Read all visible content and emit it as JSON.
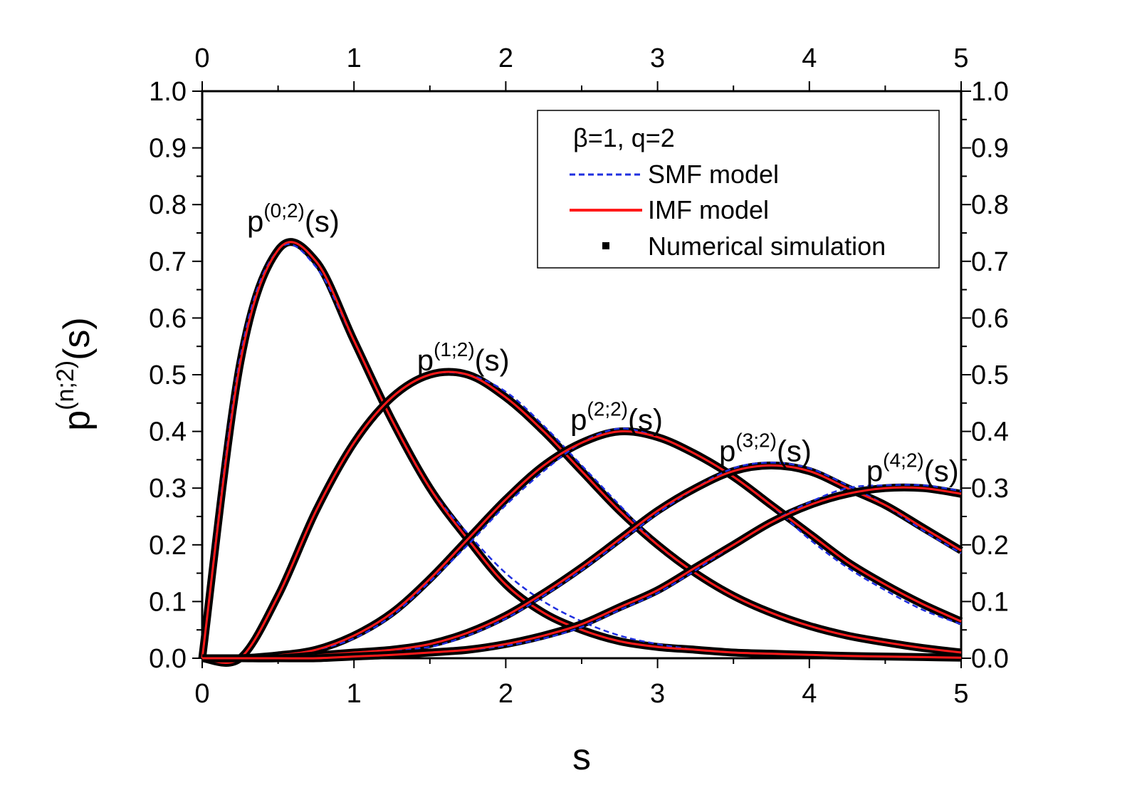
{
  "chart_data": {
    "type": "line",
    "title": "",
    "xlabel": "s",
    "ylabel": {
      "base": "p",
      "sup": "(n;2)",
      "tail": "(s)"
    },
    "xlim": [
      0,
      5
    ],
    "ylim": [
      0,
      1.0
    ],
    "x_ticks": [
      "0",
      "1",
      "2",
      "3",
      "4",
      "5"
    ],
    "y_ticks": [
      "0.0",
      "0.1",
      "0.2",
      "0.3",
      "0.4",
      "0.5",
      "0.6",
      "0.7",
      "0.8",
      "0.9",
      "1.0"
    ],
    "legend": {
      "placement": "top-right",
      "header": "β=1, q=2",
      "entries": [
        {
          "label": "SMF model",
          "style": "dashed",
          "color": "#1f2fe0"
        },
        {
          "label": "IMF model",
          "style": "solid",
          "color": "#ff1a1a"
        },
        {
          "label": "Numerical simulation",
          "style": "marker",
          "color": "#000000"
        }
      ]
    },
    "curve_labels": [
      {
        "base": "p",
        "sup": "(0;2)",
        "tail": "(s)",
        "at": [
          0.6,
          0.77
        ]
      },
      {
        "base": "p",
        "sup": "(1;2)",
        "tail": "(s)",
        "at": [
          1.72,
          0.525
        ]
      },
      {
        "base": "p",
        "sup": "(2;2)",
        "tail": "(s)",
        "at": [
          2.73,
          0.42
        ]
      },
      {
        "base": "p",
        "sup": "(3;2)",
        "tail": "(s)",
        "at": [
          3.71,
          0.365
        ]
      },
      {
        "base": "p",
        "sup": "(4;2)",
        "tail": "(s)",
        "at": [
          4.68,
          0.33
        ]
      }
    ],
    "x": [
      0,
      0.25,
      0.5,
      0.75,
      1.0,
      1.25,
      1.5,
      1.75,
      2.0,
      2.25,
      2.5,
      2.75,
      3.0,
      3.25,
      3.5,
      3.75,
      4.0,
      4.25,
      4.5,
      4.75,
      5.0
    ],
    "series": [
      {
        "name": "n=0",
        "imf": [
          0,
          0.52,
          0.72,
          0.7,
          0.56,
          0.42,
          0.3,
          0.21,
          0.13,
          0.08,
          0.05,
          0.03,
          0.02,
          0.015,
          0.01,
          0.008,
          0.006,
          0.004,
          0.003,
          0.002,
          0.001
        ],
        "smf": [
          0,
          0.53,
          0.72,
          0.69,
          0.56,
          0.42,
          0.3,
          0.22,
          0.15,
          0.1,
          0.065,
          0.04,
          0.025,
          0.015,
          0.01,
          0.008,
          0.006,
          0.004,
          0.003,
          0.002,
          0.001
        ]
      },
      {
        "name": "n=1",
        "imf": [
          0,
          0.0,
          0.11,
          0.26,
          0.38,
          0.46,
          0.5,
          0.5,
          0.46,
          0.4,
          0.33,
          0.26,
          0.2,
          0.15,
          0.11,
          0.08,
          0.057,
          0.04,
          0.028,
          0.018,
          0.01
        ],
        "smf": [
          0,
          0.0,
          0.11,
          0.26,
          0.38,
          0.46,
          0.5,
          0.5,
          0.47,
          0.41,
          0.34,
          0.27,
          0.2,
          0.15,
          0.11,
          0.08,
          0.057,
          0.04,
          0.028,
          0.018,
          0.01
        ]
      },
      {
        "name": "n=2",
        "imf": [
          0,
          0.0,
          0.005,
          0.015,
          0.04,
          0.08,
          0.14,
          0.21,
          0.28,
          0.34,
          0.38,
          0.4,
          0.39,
          0.36,
          0.32,
          0.27,
          0.22,
          0.17,
          0.13,
          0.095,
          0.065
        ],
        "smf": [
          0,
          0.0,
          0.005,
          0.015,
          0.035,
          0.075,
          0.135,
          0.2,
          0.27,
          0.33,
          0.38,
          0.405,
          0.39,
          0.36,
          0.32,
          0.27,
          0.21,
          0.16,
          0.12,
          0.085,
          0.06
        ]
      },
      {
        "name": "n=3",
        "imf": [
          0,
          0.0,
          0.0,
          0.005,
          0.01,
          0.015,
          0.025,
          0.045,
          0.075,
          0.115,
          0.16,
          0.21,
          0.26,
          0.3,
          0.33,
          0.34,
          0.33,
          0.3,
          0.27,
          0.23,
          0.19
        ],
        "smf": [
          0,
          0.0,
          0.0,
          0.005,
          0.01,
          0.015,
          0.02,
          0.04,
          0.07,
          0.11,
          0.155,
          0.205,
          0.255,
          0.3,
          0.335,
          0.345,
          0.335,
          0.305,
          0.27,
          0.225,
          0.185
        ]
      },
      {
        "name": "n=4",
        "imf": [
          0,
          0.0,
          0.0,
          0.0,
          0.003,
          0.006,
          0.01,
          0.015,
          0.025,
          0.04,
          0.06,
          0.09,
          0.12,
          0.16,
          0.2,
          0.24,
          0.27,
          0.29,
          0.3,
          0.3,
          0.29
        ],
        "smf": [
          0,
          0.0,
          0.0,
          0.0,
          0.003,
          0.006,
          0.01,
          0.015,
          0.022,
          0.035,
          0.055,
          0.085,
          0.115,
          0.155,
          0.2,
          0.24,
          0.275,
          0.3,
          0.305,
          0.305,
          0.295
        ]
      }
    ]
  }
}
